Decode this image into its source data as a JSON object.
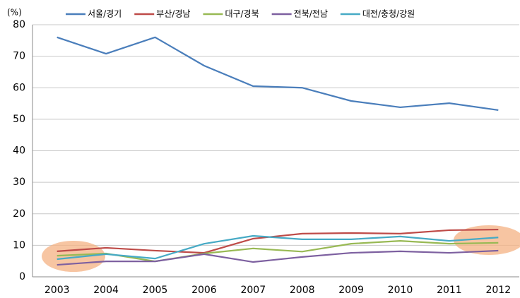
{
  "chart_data": {
    "type": "line",
    "y_label": "(%)",
    "categories": [
      "2003",
      "2004",
      "2005",
      "2006",
      "2007",
      "2008",
      "2009",
      "2010",
      "2011",
      "2012"
    ],
    "series": [
      {
        "name": "서울/경기",
        "color": "#4a7ebb",
        "values": [
          76,
          70.8,
          76,
          67,
          60.5,
          60,
          55.8,
          53.8,
          55.1,
          52.9
        ]
      },
      {
        "name": "부산/경남",
        "color": "#be4b48",
        "values": [
          8.1,
          9.2,
          8.3,
          7.6,
          12.1,
          13.7,
          13.9,
          13.7,
          14.8,
          15
        ]
      },
      {
        "name": "대구/경북",
        "color": "#98b954",
        "values": [
          6.7,
          7.4,
          4.9,
          7.4,
          9,
          8,
          10.5,
          11.4,
          10.5,
          10.8
        ]
      },
      {
        "name": "전북/전남",
        "color": "#7d60a0",
        "values": [
          3.8,
          4.9,
          4.9,
          7.2,
          4.7,
          6.3,
          7.6,
          8.1,
          7.6,
          8.3
        ]
      },
      {
        "name": "대전/충청/강원",
        "color": "#46aac5",
        "values": [
          5.6,
          7.2,
          5.8,
          10.5,
          13,
          11.9,
          11.9,
          12.8,
          11.4,
          12.5
        ]
      }
    ],
    "ylim": [
      0,
      80
    ],
    "yticks": [
      0,
      10,
      20,
      30,
      40,
      50,
      60,
      70,
      80
    ],
    "grid": true
  }
}
